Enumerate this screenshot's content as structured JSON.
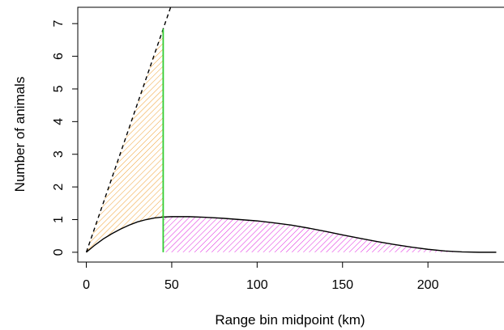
{
  "chart_data": {
    "type": "area",
    "title": "",
    "xlabel": "Range bin midpoint (km)",
    "ylabel": "Number of animals",
    "xlim": [
      -5,
      245
    ],
    "ylim": [
      -0.3,
      7.5
    ],
    "x_ticks": [
      0,
      50,
      100,
      150,
      200
    ],
    "y_ticks": [
      0,
      1,
      2,
      3,
      4,
      5,
      6,
      7
    ],
    "grid": false,
    "legend": "none",
    "series": [
      {
        "style": "dashed-line",
        "color": "#000000",
        "x": [
          0,
          50
        ],
        "y": [
          0,
          7.6
        ]
      },
      {
        "style": "solid-line",
        "color": "#000000",
        "x": [
          0,
          5,
          10,
          15,
          20,
          25,
          30,
          35,
          40,
          45,
          50,
          60,
          70,
          80,
          90,
          100,
          110,
          120,
          130,
          140,
          150,
          160,
          170,
          180,
          190,
          200,
          210,
          220,
          230,
          240
        ],
        "y": [
          0,
          0.22,
          0.41,
          0.57,
          0.71,
          0.83,
          0.93,
          1.0,
          1.05,
          1.08,
          1.09,
          1.09,
          1.07,
          1.04,
          1.0,
          0.96,
          0.9,
          0.83,
          0.74,
          0.64,
          0.53,
          0.43,
          0.33,
          0.24,
          0.16,
          0.09,
          0.04,
          0.01,
          0.0,
          0.0
        ]
      }
    ],
    "cutoff": {
      "x": 45,
      "y_top": 6.84,
      "color": "#33cc33"
    },
    "fills": [
      {
        "region": "between-dashed-and-curve",
        "x_range": [
          0,
          45
        ],
        "color": "#f0a030",
        "pattern": "hatch"
      },
      {
        "region": "under-curve",
        "x_range": [
          45,
          235
        ],
        "color": "#e020e0",
        "pattern": "hatch"
      }
    ]
  }
}
